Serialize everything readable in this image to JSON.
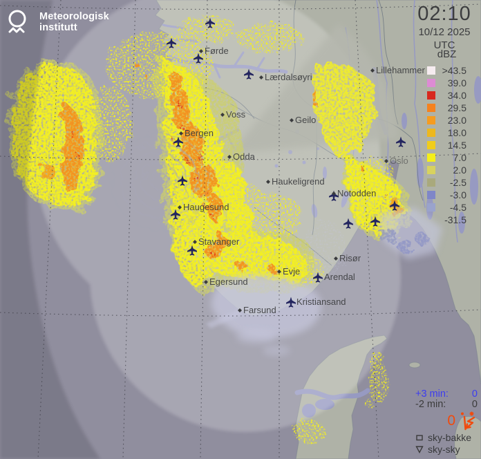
{
  "branding": {
    "line1": "Meteorologisk",
    "line2": "institutt"
  },
  "clock": {
    "time": "02:10",
    "date": "10/12 2025",
    "zone": "UTC"
  },
  "legend": {
    "unit": "dBZ",
    "levels": [
      {
        "label": ">43.5",
        "color": "#f6ecf0"
      },
      {
        "label": "39.0",
        "color": "#dd8bd4"
      },
      {
        "label": "34.0",
        "color": "#d8281e"
      },
      {
        "label": "29.5",
        "color": "#f5821e"
      },
      {
        "label": "23.0",
        "color": "#f59c20"
      },
      {
        "label": "18.0",
        "color": "#edb81e"
      },
      {
        "label": "14.5",
        "color": "#f0cd1a"
      },
      {
        "label": "7.0",
        "color": "#f5ef19"
      },
      {
        "label": "2.0",
        "color": "#d8d25e"
      },
      {
        "label": "-2.5",
        "color": "#a9a97c"
      },
      {
        "label": "-3.0",
        "color": "#7f86c8"
      },
      {
        "label": "-4.5",
        "color": "#9aa3cc"
      },
      {
        "label": "-31.5",
        "color": "#ccceе8"
      }
    ]
  },
  "status": {
    "plus3": {
      "label": "+3 min:",
      "value": "0"
    },
    "minus2": {
      "label": "-2 min:",
      "value": "0"
    },
    "lightning": {
      "count": "0"
    },
    "types": [
      {
        "label": "sky-bakke"
      },
      {
        "label": "sky-sky"
      }
    ]
  },
  "map": {
    "places": [
      {
        "name": "Førde"
      },
      {
        "name": "Lærdalsøyri"
      },
      {
        "name": "Lillehammer"
      },
      {
        "name": "Voss"
      },
      {
        "name": "Geilo"
      },
      {
        "name": "Bergen"
      },
      {
        "name": "Odda"
      },
      {
        "name": "Oslo"
      },
      {
        "name": "Haukeligrend"
      },
      {
        "name": "Notodden"
      },
      {
        "name": "Haugesund"
      },
      {
        "name": "Stavanger"
      },
      {
        "name": "Egersund"
      },
      {
        "name": "Evje"
      },
      {
        "name": "Risør"
      },
      {
        "name": "Arendal"
      },
      {
        "name": "Kristiansand"
      },
      {
        "name": "Farsund"
      }
    ]
  }
}
